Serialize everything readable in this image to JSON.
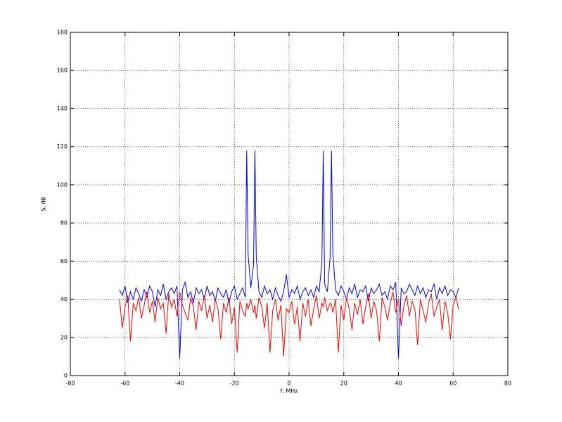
{
  "chart_data": {
    "type": "line",
    "xlabel": "f, MHz",
    "ylabel": "S, dB",
    "x": [
      -62,
      -61,
      -60,
      -59,
      -58,
      -57,
      -56,
      -55,
      -54,
      -53,
      -52,
      -51,
      -50,
      -49,
      -48,
      -47,
      -46,
      -45,
      -44,
      -43,
      -42,
      -41,
      -40,
      -39,
      -38,
      -37,
      -36,
      -35,
      -34,
      -33,
      -32,
      -31,
      -30,
      -29,
      -28,
      -27,
      -26,
      -25,
      -24,
      -23,
      -22,
      -21,
      -20,
      -19,
      -18,
      -17,
      -16,
      -15.5,
      -15,
      -14,
      -13,
      -12.5,
      -12,
      -11,
      -10,
      -9,
      -8,
      -7,
      -6,
      -5,
      -4,
      -3,
      -2,
      -1,
      0,
      1,
      2,
      3,
      4,
      5,
      6,
      7,
      8,
      9,
      10,
      11,
      12,
      12.5,
      13,
      14,
      15,
      15.5,
      16,
      17,
      18,
      19,
      20,
      21,
      22,
      23,
      24,
      25,
      26,
      27,
      28,
      29,
      30,
      31,
      32,
      33,
      34,
      35,
      36,
      37,
      38,
      39,
      40,
      41,
      42,
      43,
      44,
      45,
      46,
      47,
      48,
      49,
      50,
      51,
      52,
      53,
      54,
      55,
      56,
      57,
      58,
      59,
      60,
      61,
      62
    ],
    "series": [
      {
        "color": "#0000ff",
        "values": [
          45,
          42,
          47,
          38,
          44,
          40,
          46,
          43,
          39,
          45,
          41,
          47,
          44,
          36,
          45,
          42,
          48,
          40,
          44,
          46,
          43,
          47,
          9,
          45,
          49,
          41,
          44,
          38,
          46,
          43,
          45,
          40,
          47,
          42,
          44,
          39,
          46,
          43,
          41,
          45,
          38,
          44,
          47,
          40,
          43,
          46,
          41,
          118,
          64,
          46,
          58,
          118,
          62,
          44,
          41,
          47,
          43,
          45,
          40,
          46,
          42,
          39,
          44,
          53,
          41,
          45,
          43,
          47,
          40,
          44,
          46,
          42,
          45,
          41,
          47,
          44,
          60,
          118,
          48,
          44,
          62,
          118,
          64,
          45,
          42,
          47,
          44,
          40,
          46,
          43,
          48,
          41,
          45,
          44,
          47,
          39,
          46,
          43,
          45,
          48,
          42,
          44,
          40,
          47,
          45,
          49,
          9,
          46,
          43,
          44,
          48,
          45,
          42,
          47,
          43,
          46,
          41,
          45,
          44,
          48,
          40,
          46,
          43,
          47,
          42,
          45,
          44,
          41,
          46
        ]
      },
      {
        "color": "#ff0000",
        "values": [
          40,
          25,
          36,
          42,
          18,
          38,
          34,
          41,
          30,
          37,
          44,
          33,
          39,
          28,
          41,
          35,
          38,
          22,
          43,
          36,
          40,
          31,
          44,
          37,
          33,
          29,
          41,
          36,
          24,
          39,
          34,
          42,
          30,
          37,
          28,
          40,
          35,
          19,
          38,
          33,
          41,
          27,
          36,
          12,
          39,
          34,
          31,
          38,
          35,
          40,
          33,
          37,
          30,
          41,
          36,
          25,
          38,
          12,
          34,
          40,
          29,
          37,
          10,
          35,
          33,
          39,
          27,
          36,
          18,
          38,
          31,
          40,
          26,
          35,
          42,
          30,
          38,
          36,
          41,
          34,
          38,
          37,
          33,
          40,
          12,
          37,
          29,
          41,
          35,
          24,
          38,
          32,
          40,
          27,
          36,
          43,
          30,
          39,
          34,
          18,
          41,
          36,
          29,
          38,
          44,
          33,
          40,
          26,
          37,
          42,
          31,
          39,
          35,
          16,
          40,
          34,
          28,
          38,
          43,
          31,
          36,
          40,
          24,
          39,
          33,
          19,
          37,
          41,
          35
        ]
      }
    ],
    "xlim": [
      -80,
      80
    ],
    "ylim": [
      0,
      180
    ],
    "xticks": [
      -80,
      -60,
      -40,
      -20,
      0,
      20,
      40,
      60,
      80
    ],
    "yticks": [
      0,
      20,
      40,
      60,
      80,
      100,
      120,
      140,
      160,
      180
    ],
    "grid": true
  }
}
